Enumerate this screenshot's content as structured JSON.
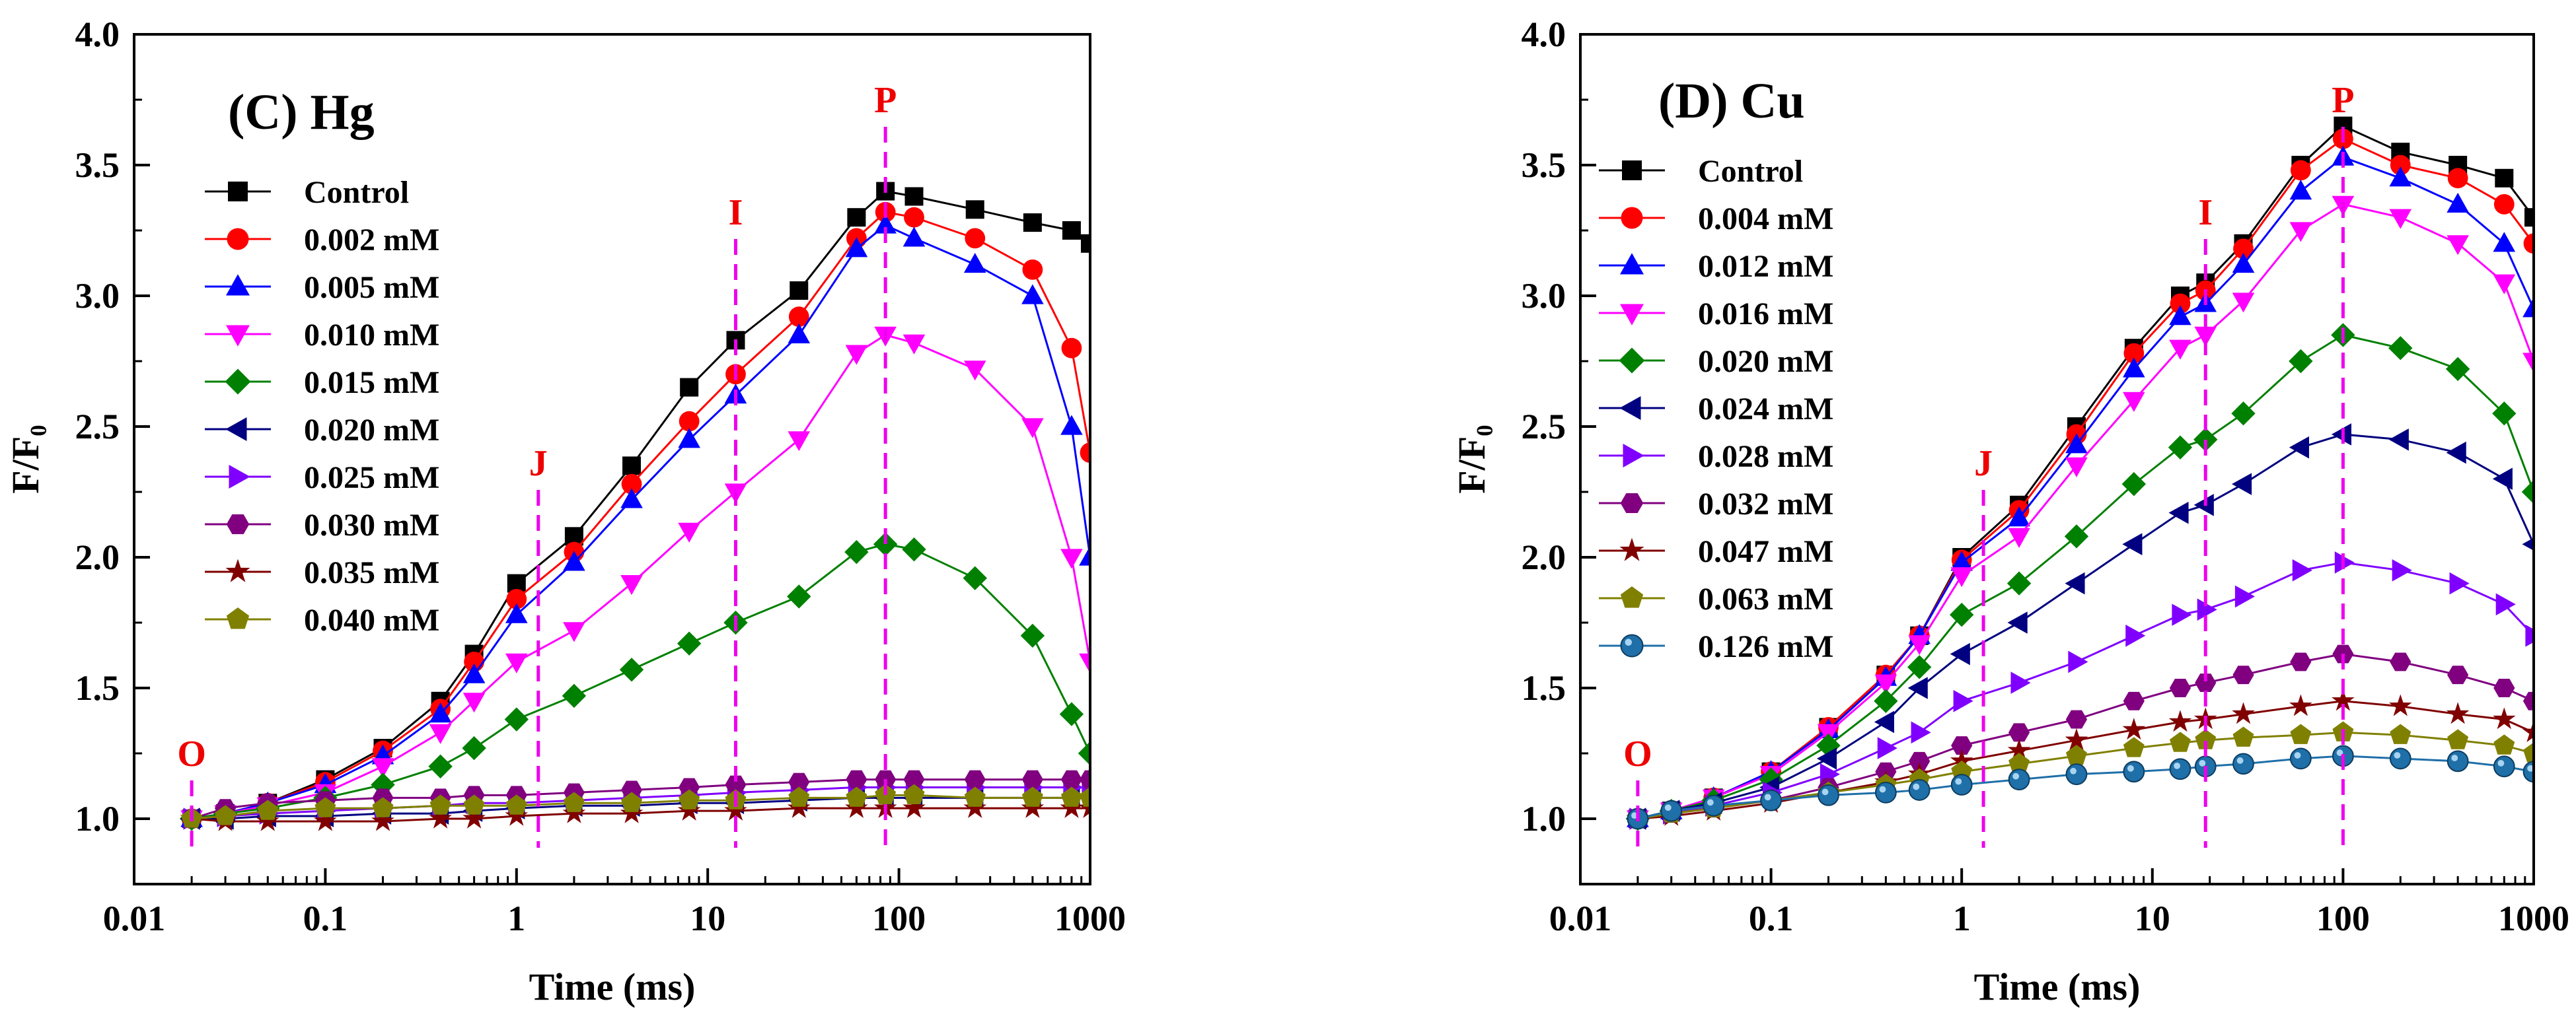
{
  "chart_data": [
    {
      "type": "line",
      "title": "(C) Hg",
      "xlabel": "Time (ms)",
      "ylabel": "F/F₀",
      "xscale": "log",
      "xlim": [
        0.01,
        1000
      ],
      "ylim": [
        0.75,
        4.0
      ],
      "xticks": [
        0.01,
        0.1,
        1,
        10,
        100,
        1000
      ],
      "xtick_labels": [
        "0.01",
        "0.1",
        "1",
        "10",
        "100",
        "1000"
      ],
      "yticks": [
        1.0,
        1.5,
        2.0,
        2.5,
        3.0,
        3.5,
        4.0
      ],
      "ytick_labels": [
        "1.0",
        "1.5",
        "2.0",
        "2.5",
        "3.0",
        "3.5",
        "4.0"
      ],
      "grid": false,
      "legend_position": "top-left",
      "annotations": [
        {
          "label": "O",
          "x": 0.02
        },
        {
          "label": "J",
          "x": 1.3
        },
        {
          "label": "I",
          "x": 14
        },
        {
          "label": "P",
          "x": 85
        }
      ],
      "x": [
        0.02,
        0.03,
        0.05,
        0.1,
        0.2,
        0.4,
        0.6,
        1,
        2,
        4,
        8,
        14,
        30,
        60,
        85,
        120,
        250,
        500,
        800,
        1000
      ],
      "series": [
        {
          "name": "Control",
          "color": "#000000",
          "marker": "square",
          "values": [
            1.0,
            1.02,
            1.06,
            1.15,
            1.27,
            1.45,
            1.63,
            1.9,
            2.08,
            2.35,
            2.65,
            2.83,
            3.02,
            3.3,
            3.4,
            3.38,
            3.33,
            3.28,
            3.25,
            3.2
          ]
        },
        {
          "name": "0.002 mM",
          "color": "#ff0000",
          "marker": "circle",
          "values": [
            1.0,
            1.02,
            1.06,
            1.14,
            1.26,
            1.42,
            1.6,
            1.84,
            2.02,
            2.28,
            2.52,
            2.7,
            2.92,
            3.22,
            3.32,
            3.3,
            3.22,
            3.1,
            2.8,
            2.4
          ]
        },
        {
          "name": "0.005 mM",
          "color": "#0000ff",
          "marker": "triangle-up",
          "values": [
            1.0,
            1.02,
            1.06,
            1.13,
            1.24,
            1.4,
            1.55,
            1.78,
            1.98,
            2.22,
            2.45,
            2.62,
            2.85,
            3.18,
            3.27,
            3.22,
            3.12,
            3.0,
            2.5,
            2.0
          ]
        },
        {
          "name": "0.010 mM",
          "color": "#ff00ff",
          "marker": "triangle-down",
          "values": [
            1.0,
            1.02,
            1.05,
            1.1,
            1.2,
            1.33,
            1.45,
            1.6,
            1.72,
            1.9,
            2.1,
            2.25,
            2.45,
            2.78,
            2.85,
            2.82,
            2.72,
            2.5,
            2.0,
            1.6
          ]
        },
        {
          "name": "0.015 mM",
          "color": "#008000",
          "marker": "diamond",
          "values": [
            1.0,
            1.02,
            1.04,
            1.08,
            1.13,
            1.2,
            1.27,
            1.38,
            1.47,
            1.57,
            1.67,
            1.75,
            1.85,
            2.02,
            2.05,
            2.03,
            1.92,
            1.7,
            1.4,
            1.25
          ]
        },
        {
          "name": "0.020 mM",
          "color": "#000080",
          "marker": "triangle-left",
          "values": [
            1.0,
            1.0,
            1.01,
            1.01,
            1.02,
            1.02,
            1.03,
            1.04,
            1.05,
            1.05,
            1.06,
            1.06,
            1.07,
            1.08,
            1.08,
            1.08,
            1.08,
            1.08,
            1.08,
            1.08
          ]
        },
        {
          "name": "0.025 mM",
          "color": "#8000ff",
          "marker": "triangle-right",
          "values": [
            1.0,
            1.01,
            1.02,
            1.03,
            1.04,
            1.05,
            1.06,
            1.06,
            1.07,
            1.08,
            1.09,
            1.1,
            1.11,
            1.12,
            1.12,
            1.12,
            1.12,
            1.12,
            1.12,
            1.12
          ]
        },
        {
          "name": "0.030 mM",
          "color": "#800080",
          "marker": "hexagon",
          "values": [
            1.0,
            1.04,
            1.06,
            1.07,
            1.08,
            1.08,
            1.09,
            1.09,
            1.1,
            1.11,
            1.12,
            1.13,
            1.14,
            1.15,
            1.15,
            1.15,
            1.15,
            1.15,
            1.15,
            1.15
          ]
        },
        {
          "name": "0.035 mM",
          "color": "#800000",
          "marker": "star",
          "values": [
            1.0,
            0.99,
            0.99,
            0.99,
            0.99,
            1.0,
            1.0,
            1.01,
            1.02,
            1.02,
            1.03,
            1.03,
            1.04,
            1.04,
            1.04,
            1.04,
            1.04,
            1.04,
            1.04,
            1.04
          ]
        },
        {
          "name": "0.040 mM",
          "color": "#808000",
          "marker": "pentagon",
          "values": [
            1.0,
            1.01,
            1.03,
            1.04,
            1.04,
            1.05,
            1.05,
            1.05,
            1.06,
            1.06,
            1.07,
            1.07,
            1.08,
            1.08,
            1.09,
            1.09,
            1.08,
            1.08,
            1.08,
            1.08
          ]
        }
      ]
    },
    {
      "type": "line",
      "title": "(D) Cu",
      "xlabel": "Time (ms)",
      "ylabel": "F/F₀",
      "xscale": "log",
      "xlim": [
        0.01,
        1000
      ],
      "ylim": [
        0.75,
        4.0
      ],
      "xticks": [
        0.01,
        0.1,
        1,
        10,
        100,
        1000
      ],
      "xtick_labels": [
        "0.01",
        "0.1",
        "1",
        "10",
        "100",
        "1000"
      ],
      "yticks": [
        1.0,
        1.5,
        2.0,
        2.5,
        3.0,
        3.5,
        4.0
      ],
      "ytick_labels": [
        "1.0",
        "1.5",
        "2.0",
        "2.5",
        "3.0",
        "3.5",
        "4.0"
      ],
      "grid": false,
      "legend_position": "top-left",
      "annotations": [
        {
          "label": "O",
          "x": 0.02
        },
        {
          "label": "J",
          "x": 1.3
        },
        {
          "label": "I",
          "x": 19
        },
        {
          "label": "P",
          "x": 100
        }
      ],
      "x": [
        0.02,
        0.03,
        0.05,
        0.1,
        0.2,
        0.4,
        0.6,
        1,
        2,
        4,
        8,
        14,
        19,
        30,
        60,
        100,
        200,
        400,
        700,
        1000
      ],
      "series": [
        {
          "name": "Control",
          "color": "#000000",
          "marker": "square",
          "values": [
            1.0,
            1.03,
            1.08,
            1.18,
            1.35,
            1.55,
            1.7,
            2.0,
            2.2,
            2.5,
            2.8,
            3.0,
            3.05,
            3.2,
            3.5,
            3.65,
            3.55,
            3.5,
            3.45,
            3.3
          ]
        },
        {
          "name": "0.004 mM",
          "color": "#ff0000",
          "marker": "circle",
          "values": [
            1.0,
            1.03,
            1.08,
            1.18,
            1.35,
            1.55,
            1.7,
            1.99,
            2.18,
            2.47,
            2.78,
            2.97,
            3.02,
            3.18,
            3.48,
            3.6,
            3.5,
            3.45,
            3.35,
            3.2
          ]
        },
        {
          "name": "0.012 mM",
          "color": "#0000ff",
          "marker": "triangle-up",
          "values": [
            1.0,
            1.03,
            1.08,
            1.18,
            1.34,
            1.54,
            1.7,
            1.98,
            2.15,
            2.43,
            2.72,
            2.92,
            2.97,
            3.12,
            3.4,
            3.53,
            3.45,
            3.35,
            3.2,
            2.95
          ]
        },
        {
          "name": "0.016 mM",
          "color": "#ff00ff",
          "marker": "triangle-down",
          "values": [
            1.0,
            1.03,
            1.08,
            1.17,
            1.33,
            1.52,
            1.67,
            1.93,
            2.08,
            2.35,
            2.6,
            2.8,
            2.85,
            2.98,
            3.25,
            3.35,
            3.3,
            3.2,
            3.05,
            2.75
          ]
        },
        {
          "name": "0.020 mM",
          "color": "#008000",
          "marker": "diamond",
          "values": [
            1.0,
            1.03,
            1.07,
            1.15,
            1.28,
            1.45,
            1.58,
            1.78,
            1.9,
            2.08,
            2.28,
            2.42,
            2.45,
            2.55,
            2.75,
            2.85,
            2.8,
            2.72,
            2.55,
            2.25
          ]
        },
        {
          "name": "0.024 mM",
          "color": "#000080",
          "marker": "triangle-left",
          "values": [
            1.0,
            1.03,
            1.06,
            1.12,
            1.23,
            1.37,
            1.5,
            1.63,
            1.75,
            1.9,
            2.05,
            2.17,
            2.2,
            2.28,
            2.42,
            2.47,
            2.45,
            2.4,
            2.3,
            2.05
          ]
        },
        {
          "name": "0.028 mM",
          "color": "#8000ff",
          "marker": "triangle-right",
          "values": [
            1.0,
            1.02,
            1.05,
            1.1,
            1.17,
            1.27,
            1.33,
            1.45,
            1.52,
            1.6,
            1.7,
            1.78,
            1.8,
            1.85,
            1.95,
            1.98,
            1.95,
            1.9,
            1.82,
            1.7
          ]
        },
        {
          "name": "0.032 mM",
          "color": "#800080",
          "marker": "hexagon",
          "values": [
            1.0,
            1.02,
            1.04,
            1.07,
            1.12,
            1.18,
            1.22,
            1.28,
            1.33,
            1.38,
            1.45,
            1.5,
            1.52,
            1.55,
            1.6,
            1.63,
            1.6,
            1.55,
            1.5,
            1.45
          ]
        },
        {
          "name": "0.047 mM",
          "color": "#800000",
          "marker": "star",
          "values": [
            1.0,
            1.01,
            1.03,
            1.06,
            1.1,
            1.14,
            1.17,
            1.22,
            1.26,
            1.3,
            1.34,
            1.37,
            1.38,
            1.4,
            1.43,
            1.45,
            1.43,
            1.4,
            1.38,
            1.33
          ]
        },
        {
          "name": "0.063 mM",
          "color": "#808000",
          "marker": "pentagon",
          "values": [
            1.0,
            1.02,
            1.04,
            1.07,
            1.1,
            1.13,
            1.15,
            1.18,
            1.21,
            1.24,
            1.27,
            1.29,
            1.3,
            1.31,
            1.32,
            1.33,
            1.32,
            1.3,
            1.28,
            1.25
          ]
        },
        {
          "name": "0.126 mM",
          "color": "#1f6fa8",
          "marker": "sphere",
          "values": [
            1.0,
            1.03,
            1.05,
            1.07,
            1.09,
            1.1,
            1.11,
            1.13,
            1.15,
            1.17,
            1.18,
            1.19,
            1.2,
            1.21,
            1.23,
            1.24,
            1.23,
            1.22,
            1.2,
            1.18
          ]
        }
      ]
    }
  ]
}
